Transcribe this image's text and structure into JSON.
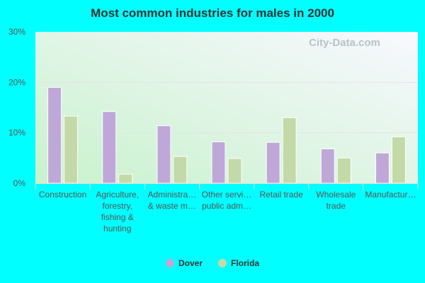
{
  "chart_data": {
    "type": "bar",
    "title": "Most common industries for males in 2000",
    "categories": [
      [
        "Construction"
      ],
      [
        "Agriculture,",
        "forestry,",
        "fishing &",
        "hunting"
      ],
      [
        "Administra…",
        "& waste m…"
      ],
      [
        "Other servi…",
        "public adm…"
      ],
      [
        "Retail trade"
      ],
      [
        "Wholesale",
        "trade"
      ],
      [
        "Manufactur…"
      ]
    ],
    "series": [
      {
        "name": "Dover",
        "color": "#bfa8d8",
        "values": [
          19.0,
          14.2,
          11.4,
          8.2,
          8.1,
          6.8,
          6.0
        ]
      },
      {
        "name": "Florida",
        "color": "#c4d9a8",
        "values": [
          13.3,
          1.8,
          5.3,
          4.9,
          13.0,
          5.0,
          9.2
        ]
      }
    ],
    "ylim": [
      0,
      30
    ],
    "yticks": [
      "0%",
      "10%",
      "20%",
      "30%"
    ],
    "ytick_values": [
      0,
      10,
      20,
      30
    ],
    "grid": true,
    "legend_position": "bottom",
    "watermark": "City-Data.com"
  }
}
